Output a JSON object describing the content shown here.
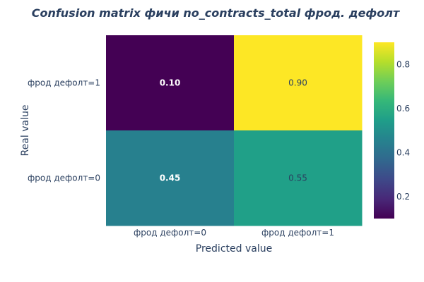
{
  "chart_data": {
    "type": "heatmap",
    "title": "Confusion matrix фичи no_contracts_total фрод. дефолт",
    "xlabel": "Predicted value",
    "ylabel": "Real value",
    "x_categories": [
      "фрод дефолт=0",
      "фрод дефолт=1"
    ],
    "y_categories": [
      "фрод дефолт=1",
      "фрод дефолт=0"
    ],
    "z": [
      [
        0.1,
        0.9
      ],
      [
        0.45,
        0.55
      ]
    ],
    "cell_labels": [
      [
        "0.10",
        "0.90"
      ],
      [
        "0.45",
        "0.55"
      ]
    ],
    "colorscale": "viridis",
    "zmin": 0.1,
    "zmax": 0.9,
    "colorbar_ticks": [
      "0.8",
      "0.6",
      "0.4",
      "0.2"
    ],
    "colorbar_tick_values": [
      0.8,
      0.6,
      0.4,
      0.2
    ],
    "legend_placement": "right"
  }
}
